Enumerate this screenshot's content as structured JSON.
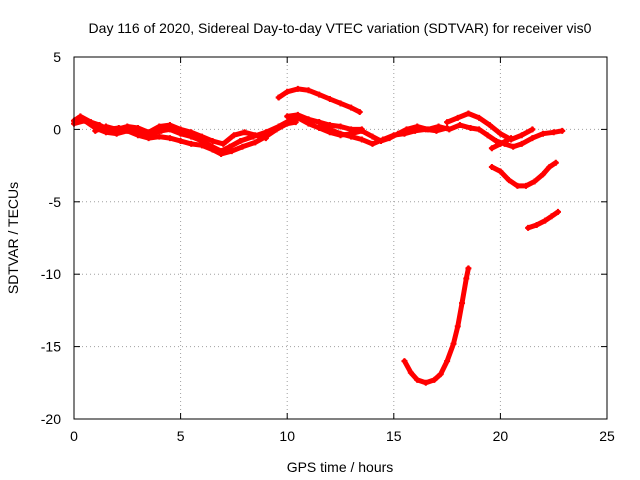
{
  "chart_data": {
    "type": "scatter",
    "title": "Day 116 of 2020, Sidereal Day-to-day VTEC variation (SDTVAR) for receiver vis0",
    "xlabel": "GPS time / hours",
    "ylabel": "SDTVAR / TECUs",
    "xlim": [
      0,
      25
    ],
    "ylim": [
      -20,
      5
    ],
    "xticks": [
      0,
      5,
      10,
      15,
      20,
      25
    ],
    "yticks": [
      5,
      0,
      -5,
      -10,
      -15,
      -20
    ],
    "grid": true,
    "series": [
      {
        "name": "SDTVAR",
        "color": "#ff0000",
        "segments": [
          [
            [
              0.0,
              0.6
            ],
            [
              0.3,
              0.9
            ],
            [
              0.8,
              0.5
            ],
            [
              1.2,
              0.3
            ],
            [
              1.6,
              0.0
            ],
            [
              2.1,
              0.1
            ],
            [
              2.6,
              0.0
            ],
            [
              3.1,
              -0.2
            ],
            [
              3.6,
              -0.3
            ],
            [
              4.1,
              -0.1
            ],
            [
              4.5,
              0.0
            ],
            [
              5.0,
              -0.3
            ],
            [
              5.5,
              -0.5
            ],
            [
              6.0,
              -0.8
            ],
            [
              6.5,
              -1.2
            ],
            [
              6.9,
              -1.5
            ],
            [
              7.3,
              -1.2
            ],
            [
              7.8,
              -0.8
            ],
            [
              8.4,
              -0.5
            ],
            [
              9.0,
              -0.2
            ],
            [
              9.6,
              0.2
            ],
            [
              10.1,
              0.6
            ],
            [
              10.5,
              0.8
            ],
            [
              11.0,
              0.4
            ],
            [
              11.5,
              0.1
            ],
            [
              12.0,
              -0.2
            ],
            [
              12.5,
              -0.4
            ],
            [
              13.0,
              -0.3
            ],
            [
              13.5,
              -0.1
            ],
            [
              14.0,
              -0.5
            ],
            [
              14.4,
              -0.8
            ],
            [
              14.8,
              -0.6
            ],
            [
              15.2,
              -0.3
            ],
            [
              15.6,
              0.0
            ],
            [
              16.1,
              0.2
            ],
            [
              16.6,
              0.0
            ],
            [
              17.1,
              0.2
            ],
            [
              17.6,
              0.0
            ],
            [
              18.1,
              0.3
            ],
            [
              18.6,
              0.1
            ],
            [
              19.0,
              0.0
            ],
            [
              19.4,
              -0.4
            ],
            [
              19.8,
              -0.8
            ],
            [
              20.2,
              -1.0
            ],
            [
              20.6,
              -1.2
            ],
            [
              21.0,
              -1.0
            ],
            [
              21.5,
              -0.6
            ],
            [
              22.0,
              -0.3
            ],
            [
              22.5,
              -0.2
            ],
            [
              22.9,
              -0.1
            ]
          ],
          [
            [
              0.0,
              0.4
            ],
            [
              0.5,
              0.6
            ],
            [
              1.0,
              0.1
            ],
            [
              1.5,
              -0.2
            ],
            [
              2.0,
              -0.3
            ],
            [
              2.5,
              -0.1
            ],
            [
              3.0,
              -0.4
            ],
            [
              3.5,
              -0.6
            ],
            [
              4.0,
              -0.5
            ],
            [
              4.5,
              -0.6
            ],
            [
              5.0,
              -0.8
            ],
            [
              5.5,
              -1.0
            ],
            [
              6.0,
              -1.1
            ],
            [
              6.5,
              -1.4
            ],
            [
              6.9,
              -1.7
            ],
            [
              7.4,
              -1.5
            ],
            [
              7.9,
              -1.2
            ],
            [
              8.5,
              -0.9
            ],
            [
              9.0,
              -0.5
            ],
            [
              9.5,
              0.0
            ],
            [
              10.0,
              0.4
            ],
            [
              10.4,
              0.5
            ]
          ],
          [
            [
              1.0,
              -0.1
            ],
            [
              1.5,
              0.2
            ],
            [
              2.0,
              0.0
            ],
            [
              2.5,
              0.2
            ],
            [
              3.0,
              0.1
            ],
            [
              3.5,
              -0.2
            ],
            [
              4.0,
              0.2
            ],
            [
              4.5,
              0.3
            ],
            [
              5.0,
              0.0
            ],
            [
              5.5,
              -0.2
            ],
            [
              6.0,
              -0.5
            ],
            [
              6.5,
              -0.8
            ],
            [
              7.0,
              -1.0
            ],
            [
              7.5,
              -0.4
            ],
            [
              8.0,
              -0.2
            ],
            [
              8.5,
              -0.4
            ],
            [
              9.0,
              -0.6
            ]
          ],
          [
            [
              10.0,
              0.9
            ],
            [
              10.5,
              1.0
            ],
            [
              11.0,
              0.7
            ],
            [
              11.5,
              0.5
            ],
            [
              12.0,
              0.3
            ],
            [
              12.5,
              0.2
            ],
            [
              13.0,
              0.0
            ],
            [
              13.5,
              0.0
            ]
          ],
          [
            [
              11.5,
              0.5
            ],
            [
              12.0,
              0.0
            ],
            [
              12.5,
              -0.3
            ],
            [
              13.0,
              -0.5
            ],
            [
              13.5,
              -0.7
            ],
            [
              14.0,
              -1.0
            ],
            [
              14.5,
              -0.7
            ],
            [
              15.0,
              -0.4
            ],
            [
              15.5,
              -0.3
            ],
            [
              16.0,
              -0.1
            ],
            [
              16.5,
              0.0
            ],
            [
              17.0,
              -0.1
            ],
            [
              17.5,
              0.1
            ]
          ],
          [
            [
              17.5,
              0.5
            ],
            [
              18.0,
              0.8
            ],
            [
              18.5,
              1.1
            ],
            [
              19.0,
              0.8
            ],
            [
              19.5,
              0.3
            ],
            [
              20.0,
              -0.3
            ],
            [
              20.5,
              -0.7
            ],
            [
              21.0,
              -0.4
            ],
            [
              21.5,
              0.0
            ]
          ],
          [
            [
              19.6,
              -1.3
            ],
            [
              20.0,
              -1.0
            ],
            [
              20.5,
              -0.6
            ]
          ],
          [
            [
              9.6,
              2.2
            ],
            [
              10.0,
              2.6
            ],
            [
              10.5,
              2.8
            ],
            [
              11.0,
              2.7
            ],
            [
              11.5,
              2.4
            ],
            [
              12.0,
              2.1
            ],
            [
              12.5,
              1.8
            ],
            [
              13.0,
              1.5
            ],
            [
              13.4,
              1.2
            ]
          ],
          [
            [
              19.6,
              -2.6
            ],
            [
              20.0,
              -2.9
            ],
            [
              20.4,
              -3.5
            ],
            [
              20.8,
              -3.9
            ],
            [
              21.2,
              -3.9
            ],
            [
              21.6,
              -3.6
            ],
            [
              22.0,
              -3.1
            ],
            [
              22.3,
              -2.6
            ],
            [
              22.6,
              -2.3
            ]
          ],
          [
            [
              21.3,
              -6.8
            ],
            [
              21.7,
              -6.6
            ],
            [
              22.1,
              -6.3
            ],
            [
              22.4,
              -6.0
            ],
            [
              22.7,
              -5.7
            ]
          ],
          [
            [
              15.5,
              -16.0
            ],
            [
              15.8,
              -16.8
            ],
            [
              16.1,
              -17.3
            ],
            [
              16.5,
              -17.5
            ],
            [
              16.9,
              -17.3
            ],
            [
              17.2,
              -16.9
            ],
            [
              17.5,
              -16.0
            ],
            [
              17.8,
              -14.8
            ],
            [
              18.0,
              -13.6
            ],
            [
              18.2,
              -12.0
            ],
            [
              18.4,
              -10.3
            ],
            [
              18.5,
              -9.6
            ]
          ]
        ]
      }
    ]
  }
}
